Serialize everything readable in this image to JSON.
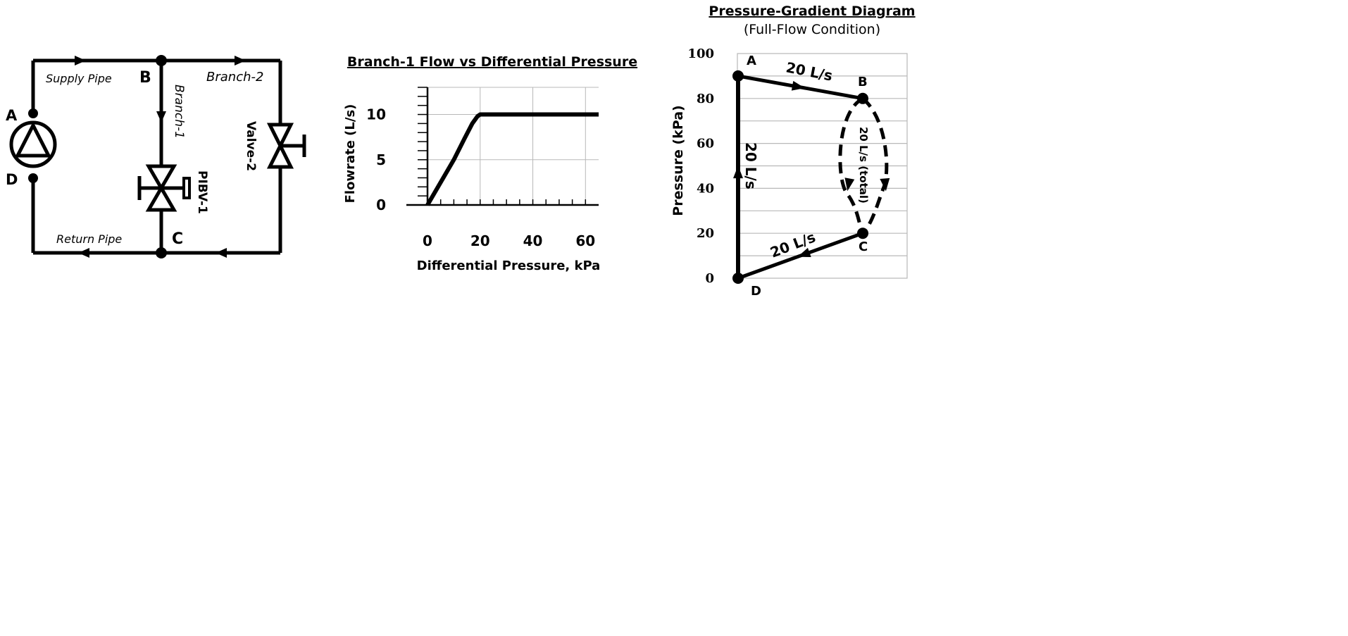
{
  "circuit": {
    "node_labels": {
      "a": "A",
      "b": "B",
      "c": "C",
      "d": "D"
    },
    "pipe_labels": {
      "supply": "Supply Pipe",
      "return": "Return Pipe",
      "branch1": "Branch-1",
      "branch2": "Branch-2"
    },
    "valve_labels": {
      "valve2": "Valve-2",
      "pibv1": "PIBV-1"
    }
  },
  "flow_chart": {
    "title": "Branch-1 Flow vs Differential Pressure",
    "xlabel": "Differential Pressure, kPa",
    "ylabel": "Flowrate (L/s)",
    "x_ticks": [
      "0",
      "20",
      "40",
      "60"
    ],
    "y_ticks": [
      "0",
      "5",
      "10"
    ]
  },
  "pressure_diagram": {
    "title": "Pressure-Gradient Diagram",
    "subtitle": "(Full-Flow Condition)",
    "ylabel": "Pressure (kPa)",
    "y_ticks": [
      "0",
      "20",
      "40",
      "60",
      "80",
      "100"
    ],
    "point_labels": {
      "a": "A",
      "b": "B",
      "c": "C",
      "d": "D"
    },
    "flow_labels": {
      "ab": "20 L/s",
      "bc": "20 L/s (total)",
      "cd": "20 L/s",
      "da": "20 L/s"
    }
  },
  "chart_data": {
    "type": "line",
    "title": "Branch-1 Flow vs Differential Pressure",
    "xlabel": "Differential Pressure, kPa",
    "ylabel": "Flowrate (L/s)",
    "x": [
      0,
      5,
      10,
      14,
      17,
      19,
      20,
      30,
      40,
      50,
      60,
      65
    ],
    "y": [
      0,
      2.5,
      5,
      7.3,
      9,
      9.8,
      10,
      10,
      10,
      10,
      10,
      10
    ],
    "xlim": [
      0,
      65
    ],
    "ylim": [
      0,
      13
    ],
    "x_ticks": [
      0,
      20,
      40,
      60
    ],
    "y_ticks": [
      0,
      5,
      10
    ],
    "grid": true
  },
  "pressure_points": {
    "a": 90,
    "b": 80,
    "c": 20,
    "d": 0,
    "ylim": [
      0,
      100
    ]
  }
}
